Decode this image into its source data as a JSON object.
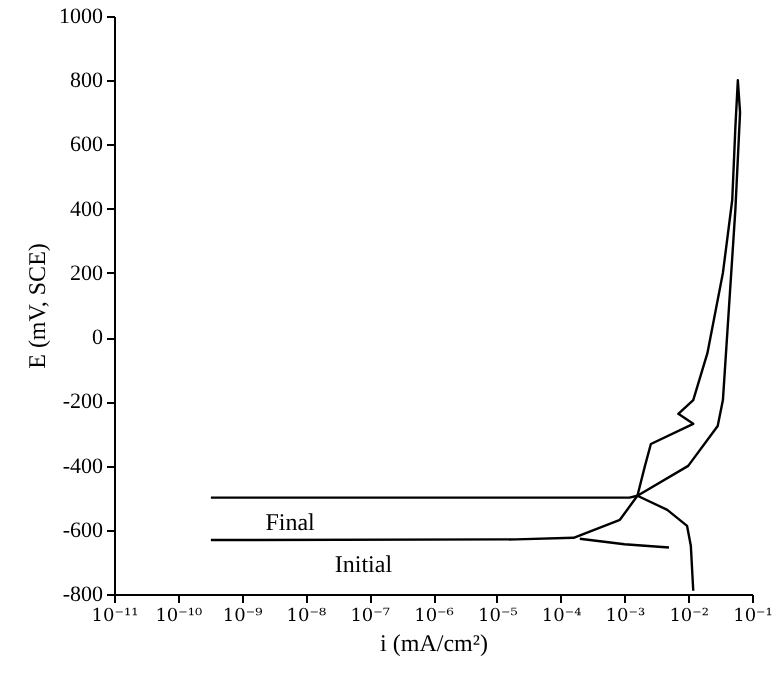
{
  "chart_data": {
    "type": "line",
    "xlabel": "i (mA/cm²)",
    "ylabel": "E (mV, SCE)",
    "log": "x",
    "grid": false,
    "marker": "none",
    "line_style": "solid",
    "xlim": [
      1e-11,
      0.1
    ],
    "ylim": [
      -800,
      1000
    ],
    "xticks": [
      {
        "value": 1e-11,
        "label": "10⁻¹¹"
      },
      {
        "value": 1e-10,
        "label": "10⁻¹⁰"
      },
      {
        "value": 1e-09,
        "label": "10⁻⁹"
      },
      {
        "value": 1e-08,
        "label": "10⁻⁸"
      },
      {
        "value": 1e-07,
        "label": "10⁻⁷"
      },
      {
        "value": 1e-06,
        "label": "10⁻⁶"
      },
      {
        "value": 1e-05,
        "label": "10⁻⁵"
      },
      {
        "value": 0.0001,
        "label": "10⁻⁴"
      },
      {
        "value": 0.001,
        "label": "10⁻³"
      },
      {
        "value": 0.01,
        "label": "10⁻²"
      },
      {
        "value": 0.1,
        "label": "10⁻¹"
      }
    ],
    "yticks": [
      -800,
      -600,
      -400,
      -200,
      0,
      200,
      400,
      600,
      800,
      1000
    ],
    "series": [
      {
        "name": "Final",
        "color": "#000000",
        "x": [
          3.3e-10,
          1e-07,
          0.0012,
          0.0016
        ],
        "values": [
          -500,
          -500,
          -500,
          -494
        ]
      },
      {
        "name": "Initial",
        "color": "#000000",
        "x": [
          3.3e-10,
          2e-05,
          0.00016,
          0.00085,
          0.0016,
          0.0021,
          0.0026,
          0.012,
          0.007,
          0.012,
          0.02,
          0.035,
          0.049,
          0.055,
          0.06,
          0.065,
          0.055,
          0.035,
          0.029,
          0.01,
          0.0016,
          0.0047,
          0.0096,
          0.011,
          0.012
        ],
        "values": [
          -632,
          -630,
          -625,
          -569,
          -494,
          -401,
          -333,
          -270,
          -239,
          -196,
          -50,
          200,
          427,
          657,
          800,
          700,
          400,
          -196,
          -277,
          -401,
          -494,
          -538,
          -588,
          -650,
          -790
        ]
      },
      {
        "color": "#000000",
        "x": [
          0.0002,
          0.001,
          0.005
        ],
        "values": [
          -628,
          -645,
          -655
        ]
      }
    ]
  }
}
